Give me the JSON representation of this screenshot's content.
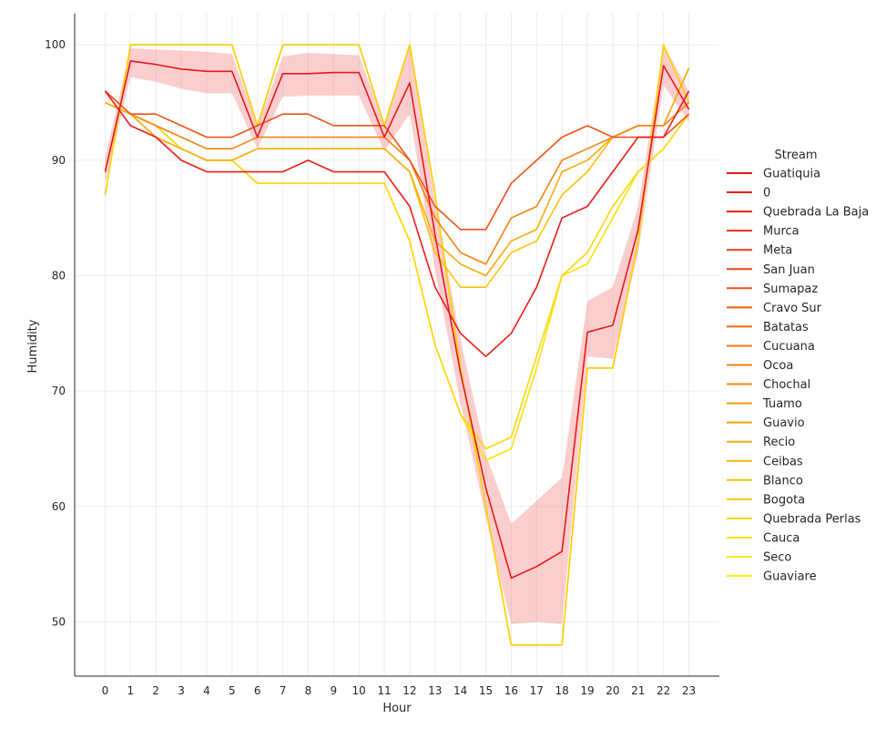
{
  "chart_data": {
    "type": "line",
    "xlabel": "Hour",
    "ylabel": "Humidity",
    "xlim": [
      -1.2,
      24.2
    ],
    "ylim": [
      45.3,
      102.7
    ],
    "x_ticks": [
      0,
      1,
      2,
      3,
      4,
      5,
      6,
      7,
      8,
      9,
      10,
      11,
      12,
      13,
      14,
      15,
      16,
      17,
      18,
      19,
      20,
      21,
      22,
      23
    ],
    "y_ticks": [
      50,
      60,
      70,
      80,
      90,
      100
    ],
    "grid": true,
    "legend": {
      "title": "Stream",
      "placement": "right",
      "entries": [
        "Guatiquia",
        "0",
        "Quebrada La Baja",
        "Murca",
        "Meta",
        "San Juan",
        "Sumapaz",
        "Cravo Sur",
        "Batatas",
        "Cucuana",
        "Ocoa",
        "Chochal",
        "Tuamo",
        "Guavio",
        "Recio",
        "Ceibas",
        "Blanco",
        "Bogota",
        "Quebrada Perlas",
        "Cauca",
        "Seco",
        "Guaviare"
      ],
      "colors": [
        "#e6191b",
        "#e81d19",
        "#e9221a",
        "#ea2e1a",
        "#eb3b18",
        "#ed4518",
        "#ef5317",
        "#f05f16",
        "#f06b15",
        "#f27714",
        "#f38212",
        "#f48e12",
        "#f59911",
        "#f7a40f",
        "#f8ad0e",
        "#f8b80d",
        "#f9c30c",
        "#fbcd0b",
        "#fcd70a",
        "#fde109",
        "#fde909",
        "#fff008"
      ]
    },
    "series": [
      {
        "color": "#e6191b",
        "ci_color": "#f57f7f",
        "values": [
          89,
          98.6,
          98.3,
          97.9,
          97.7,
          97.7,
          92,
          97.5,
          97.5,
          97.6,
          97.6,
          92,
          96.7,
          83.5,
          71.6,
          61.6,
          53.8,
          54.8,
          56.1,
          75.1,
          75.7,
          84,
          98.2,
          94.4
        ],
        "ci_upper": [
          90.2,
          99.7,
          99.6,
          99.5,
          99.4,
          99.2,
          93,
          99,
          99.3,
          99.2,
          99.1,
          93.2,
          99.9,
          86.2,
          74.5,
          64.5,
          58.5,
          60.5,
          62.5,
          77.8,
          79,
          86,
          100,
          96
        ],
        "ci_lower": [
          88,
          97.2,
          96.8,
          96.2,
          95.8,
          95.8,
          91,
          95.5,
          95.6,
          95.6,
          95.6,
          90.8,
          94,
          80.5,
          69,
          59,
          49.8,
          50,
          49.8,
          73,
          72.8,
          82,
          96.5,
          93.3
        ]
      },
      {
        "color": "#e81d19",
        "values": [
          96,
          93,
          92,
          90,
          89,
          89,
          89,
          89,
          90,
          89,
          89,
          89,
          86,
          79,
          75,
          73,
          75,
          79,
          85,
          86,
          89,
          92,
          92,
          96
        ]
      },
      {
        "color": "#ef5317",
        "values": [
          96,
          94,
          94,
          93,
          92,
          92,
          93,
          94,
          94,
          93,
          93,
          93,
          90,
          86,
          84,
          84,
          88,
          90,
          92,
          93,
          92,
          92,
          92,
          94
        ]
      },
      {
        "color": "#f38212",
        "values": [
          96,
          94,
          93,
          92,
          91,
          91,
          92,
          92,
          92,
          92,
          92,
          92,
          90,
          85,
          82,
          81,
          85,
          86,
          90,
          91,
          92,
          93,
          93,
          95
        ]
      },
      {
        "color": "#f8ad0e",
        "values": [
          95,
          94,
          92,
          91,
          90,
          90,
          91,
          91,
          91,
          91,
          91,
          91,
          89,
          83,
          81,
          80,
          83,
          84,
          89,
          90,
          92,
          93,
          93,
          98
        ]
      },
      {
        "color": "#f9c30c",
        "values": [
          95,
          94,
          92,
          91,
          90,
          90,
          91,
          91,
          91,
          91,
          91,
          91,
          89,
          82,
          79,
          79,
          82,
          83,
          87,
          89,
          92,
          93,
          93,
          98
        ]
      },
      {
        "color": "#fcd70a",
        "values": [
          95,
          94,
          93,
          91,
          90,
          90,
          88,
          88,
          88,
          88,
          88,
          88,
          83,
          74,
          68,
          65,
          66,
          73,
          80,
          82,
          86,
          89,
          91,
          94
        ]
      },
      {
        "color": "#fde109",
        "values": [
          95,
          94,
          93,
          91,
          90,
          90,
          88,
          88,
          88,
          88,
          88,
          88,
          83,
          74,
          68,
          64,
          65,
          72,
          80,
          81,
          85,
          89,
          91,
          94
        ]
      },
      {
        "color": "#fbcd0b",
        "values": [
          87,
          100,
          100,
          100,
          100,
          100,
          93,
          100,
          100,
          100,
          100,
          93,
          100,
          87,
          72,
          60,
          48,
          48,
          48,
          72,
          72,
          83,
          100,
          95
        ]
      },
      {
        "color": "#fff008",
        "values": [
          87,
          100,
          100,
          100,
          100,
          100,
          93,
          100,
          100,
          100,
          100,
          93,
          100,
          87,
          72,
          60,
          48,
          48,
          48,
          72,
          72,
          83,
          100,
          95
        ]
      }
    ]
  }
}
